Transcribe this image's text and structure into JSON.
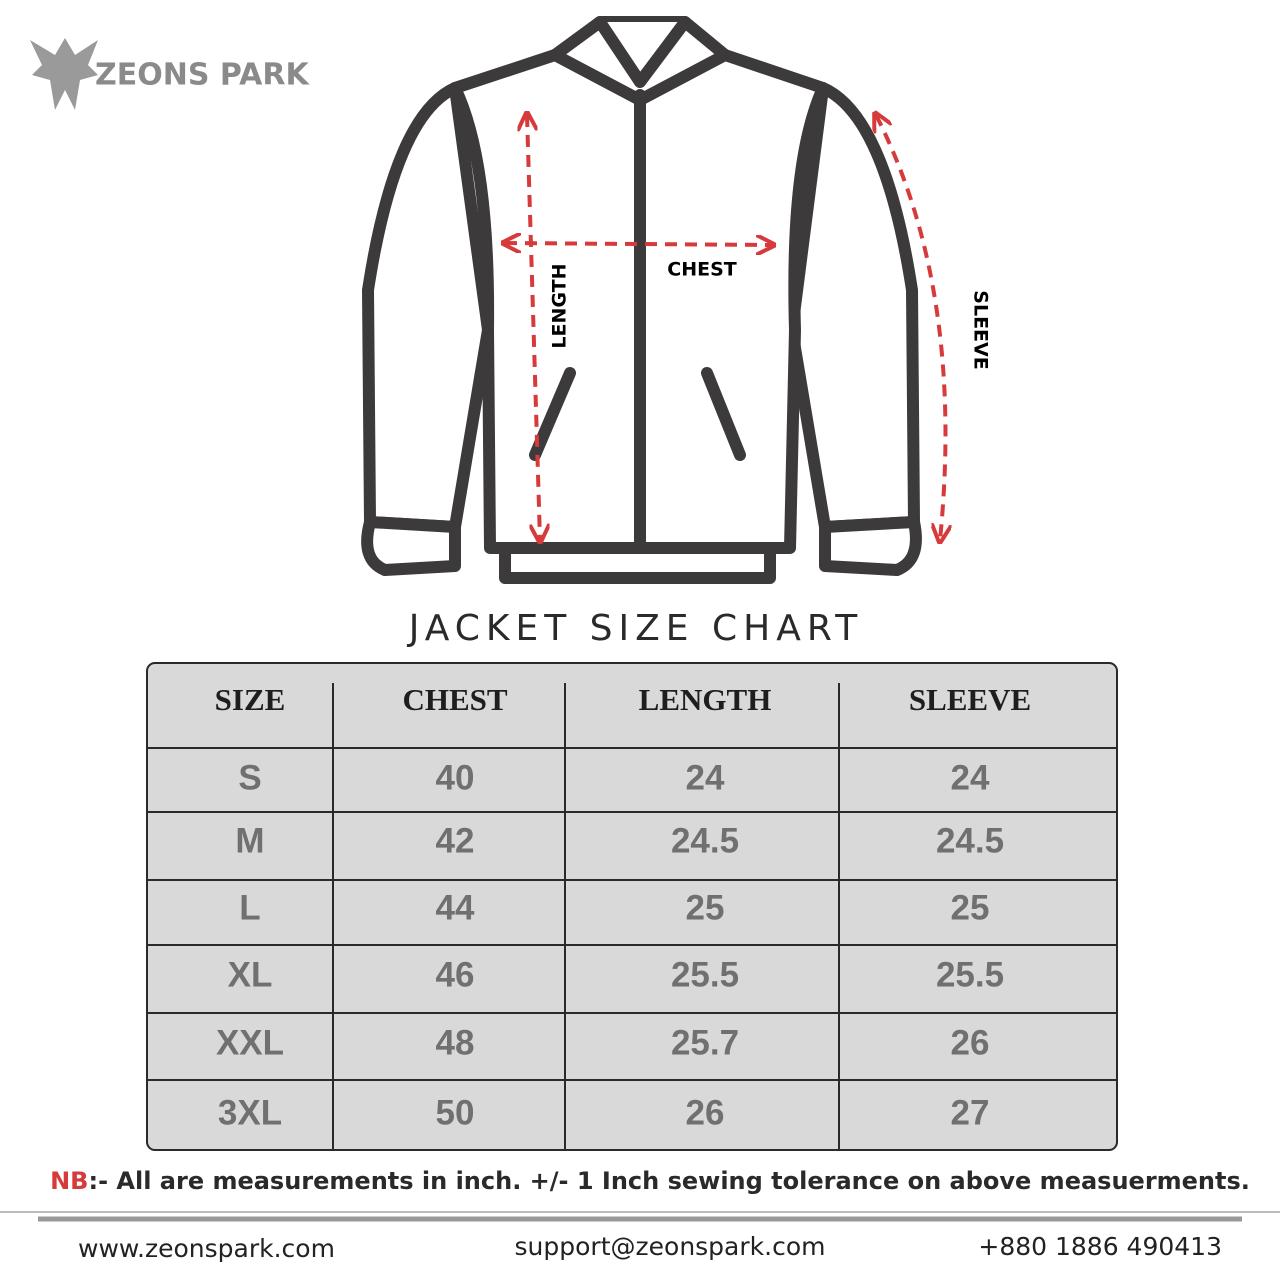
{
  "brand": "ZEONS PARK",
  "diagram": {
    "chest": "CHEST",
    "length": "LENGTH",
    "sleeve": "SLEEVE"
  },
  "title": "JACKET SIZE CHART",
  "table": {
    "headers": [
      "SIZE",
      "CHEST",
      "LENGTH",
      "SLEEVE"
    ],
    "rows": [
      [
        "S",
        "40",
        "24",
        "24"
      ],
      [
        "M",
        "42",
        "24.5",
        "24.5"
      ],
      [
        "L",
        "44",
        "25",
        "25"
      ],
      [
        "XL",
        "46",
        "25.5",
        "25.5"
      ],
      [
        "XXL",
        "48",
        "25.7",
        "26"
      ],
      [
        "3XL",
        "50",
        "26",
        "27"
      ]
    ]
  },
  "note": {
    "label": "NB",
    "text": ":- All are measurements in inch. +/- 1 Inch sewing tolerance on above measuerments."
  },
  "footer": {
    "website": "www.zeonspark.com",
    "email": "support@zeonspark.com",
    "phone": "+880 1886 490413"
  }
}
